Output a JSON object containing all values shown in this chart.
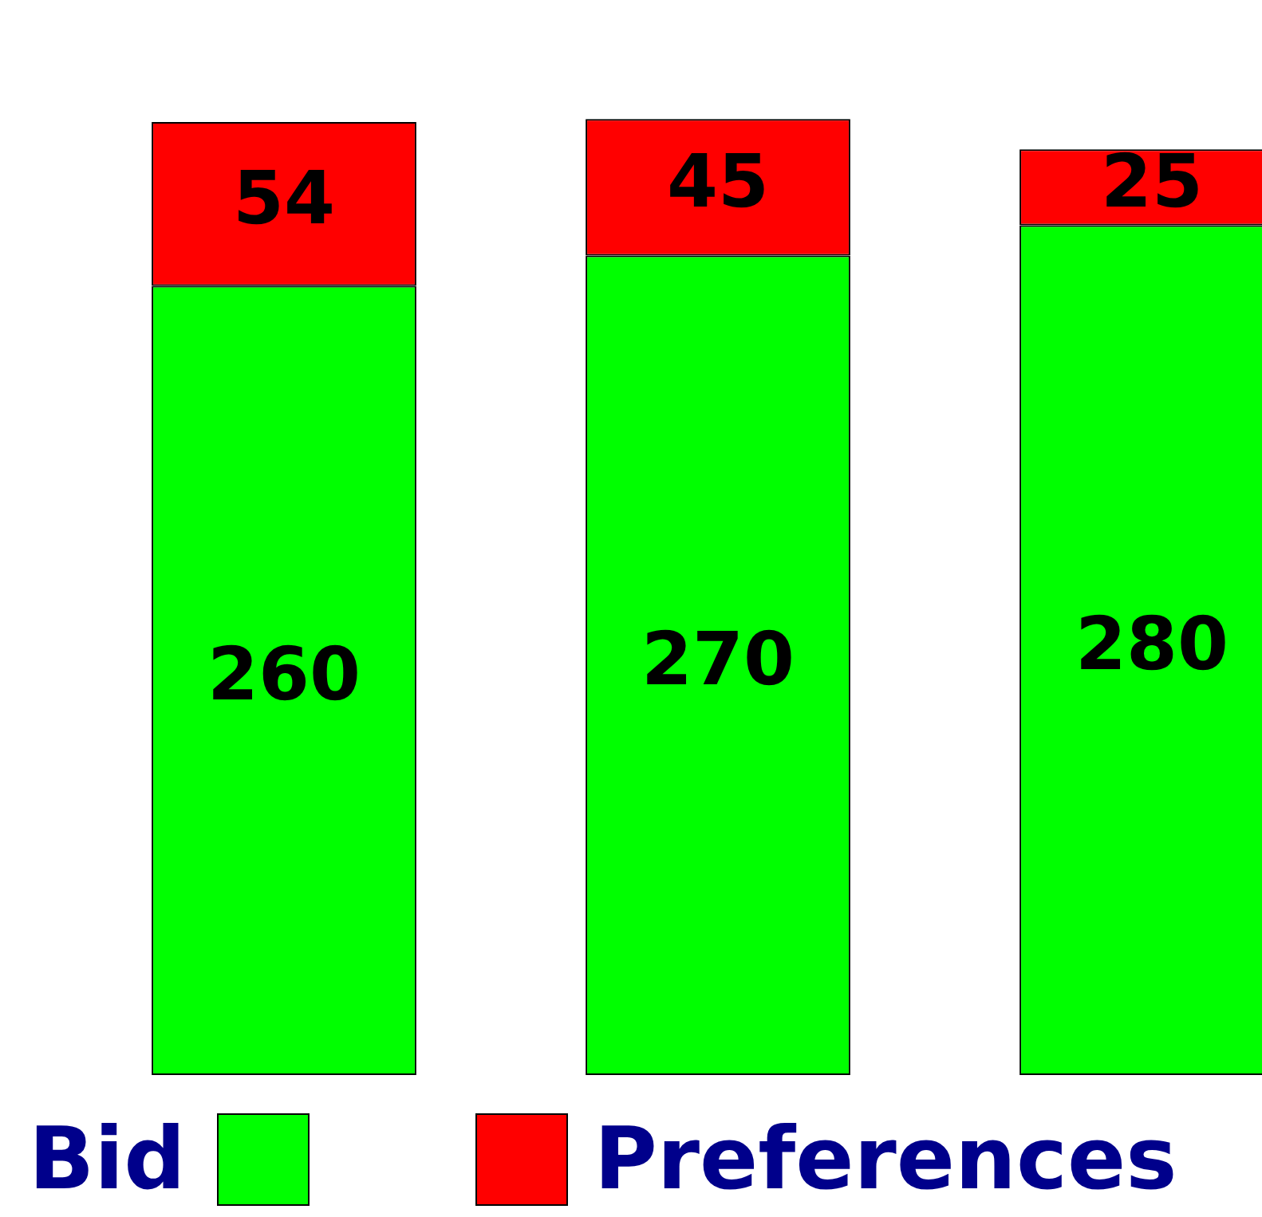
{
  "chart_data": {
    "type": "bar",
    "categories": [
      null,
      null,
      null
    ],
    "stacked": true,
    "data_labels": true,
    "legend": "bottom",
    "series": [
      {
        "name": "Bid",
        "color": "#00ff00",
        "values": [
          260,
          270,
          280
        ]
      },
      {
        "name": "Preferences",
        "color": "#ff0000",
        "values": [
          54,
          45,
          25
        ]
      }
    ]
  }
}
